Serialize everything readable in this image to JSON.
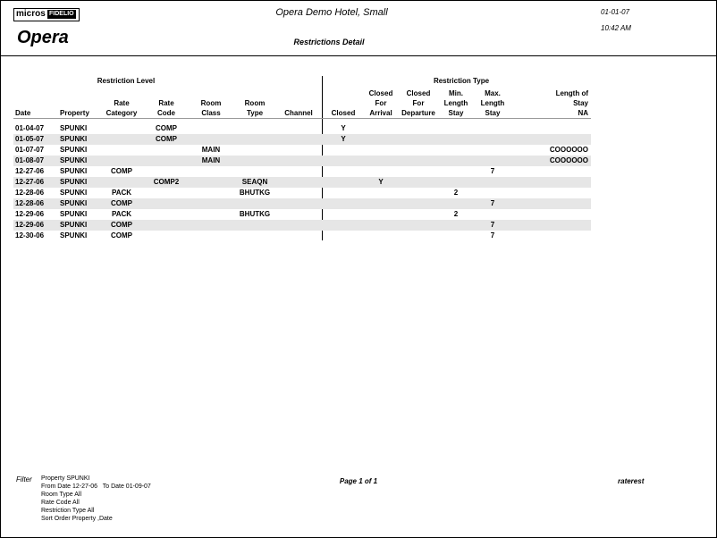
{
  "logo": {
    "micros": "micros",
    "fidelio": "FIDELIO",
    "opera": "Opera"
  },
  "header": {
    "hotel": "Opera Demo Hotel, Small",
    "date": "01-01-07",
    "time": "10:42 AM",
    "title": "Restrictions Detail"
  },
  "table": {
    "groups": [
      "Restriction Level",
      "Restriction Type"
    ],
    "columns": [
      [
        "Date"
      ],
      [
        "Property"
      ],
      [
        "Rate",
        "Category"
      ],
      [
        "Rate",
        "Code"
      ],
      [
        "Room",
        "Class"
      ],
      [
        "Room",
        "Type"
      ],
      [
        "Channel"
      ],
      [
        "Closed"
      ],
      [
        "Closed",
        "For",
        "Arrival"
      ],
      [
        "Closed",
        "For",
        "Departure"
      ],
      [
        "Min.",
        "Length",
        "Stay"
      ],
      [
        "Max.",
        "Length",
        "Stay"
      ],
      [
        "Length of",
        "Stay",
        "NA"
      ]
    ],
    "rows": [
      [
        "01-04-07",
        "SPUNKI",
        null,
        "COMP",
        null,
        null,
        null,
        "Y",
        null,
        null,
        null,
        null,
        null
      ],
      [
        "01-05-07",
        "SPUNKI",
        null,
        "COMP",
        null,
        null,
        null,
        "Y",
        null,
        null,
        null,
        null,
        null
      ],
      [
        "01-07-07",
        "SPUNKI",
        null,
        null,
        "MAIN",
        null,
        null,
        null,
        null,
        null,
        null,
        null,
        "COOOOOO"
      ],
      [
        "01-08-07",
        "SPUNKI",
        null,
        null,
        "MAIN",
        null,
        null,
        null,
        null,
        null,
        null,
        null,
        "COOOOOO"
      ],
      [
        "12-27-06",
        "SPUNKI",
        "COMP",
        null,
        null,
        null,
        null,
        null,
        null,
        null,
        null,
        "7",
        null
      ],
      [
        "12-27-06",
        "SPUNKI",
        null,
        "COMP2",
        null,
        "SEAQN",
        null,
        null,
        "Y",
        null,
        null,
        null,
        null
      ],
      [
        "12-28-06",
        "SPUNKI",
        "PACK",
        null,
        null,
        "BHUTKG",
        null,
        null,
        null,
        null,
        "2",
        null,
        null
      ],
      [
        "12-28-06",
        "SPUNKI",
        "COMP",
        null,
        null,
        null,
        null,
        null,
        null,
        null,
        null,
        "7",
        null
      ],
      [
        "12-29-06",
        "SPUNKI",
        "PACK",
        null,
        null,
        "BHUTKG",
        null,
        null,
        null,
        null,
        "2",
        null,
        null
      ],
      [
        "12-29-06",
        "SPUNKI",
        "COMP",
        null,
        null,
        null,
        null,
        null,
        null,
        null,
        null,
        "7",
        null
      ],
      [
        "12-30-06",
        "SPUNKI",
        "COMP",
        null,
        null,
        null,
        null,
        null,
        null,
        null,
        null,
        "7",
        null
      ]
    ]
  },
  "footer": {
    "filter_label": "Filter",
    "filters": [
      "Property SPUNKI",
      "From Date 12-27-06   To Date 01-09-07",
      "Room Type All",
      "Rate Code All",
      "Restriction Type All",
      "Sort Order Property ,Date"
    ],
    "page": "Page 1 of 1",
    "report": "raterest"
  }
}
